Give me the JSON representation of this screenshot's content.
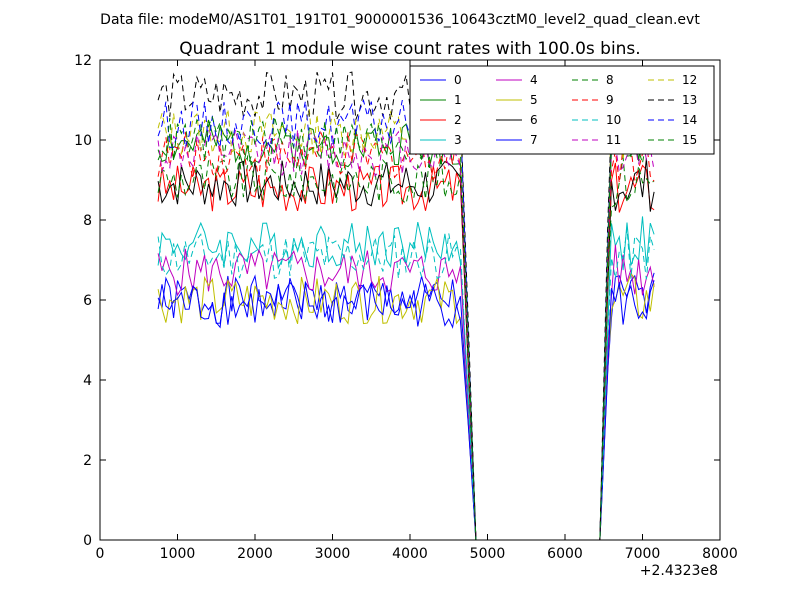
{
  "suptitle": "Data file: modeM0/AS1T01_191T01_9000001536_10643cztM0_level2_quad_clean.evt",
  "chart_data": {
    "type": "line",
    "title": "Quadrant 1 module wise count rates with 100.0s bins.",
    "xlabel": "",
    "ylabel": "",
    "x_offset_label": "+2.4323e8",
    "xlim": [
      0,
      8000
    ],
    "ylim": [
      0,
      12
    ],
    "xticks": [
      "0",
      "1000",
      "2000",
      "3000",
      "4000",
      "5000",
      "6000",
      "7000",
      "8000"
    ],
    "yticks": [
      "0",
      "2",
      "4",
      "6",
      "8",
      "10",
      "12"
    ],
    "grid": false,
    "legend_placement": "top-right",
    "legend_columns": 4,
    "segments": {
      "active1": [
        750,
        4650
      ],
      "drop": [
        4750,
        4850
      ],
      "gap": [
        4850,
        6450
      ],
      "active2": [
        6550,
        7150
      ]
    },
    "series": [
      {
        "name": "0",
        "color": "#0000ff",
        "dash": "solid",
        "base": 6.0,
        "seed": 1
      },
      {
        "name": "1",
        "color": "#008000",
        "dash": "solid",
        "base": 9.9,
        "seed": 2
      },
      {
        "name": "2",
        "color": "#ff0000",
        "dash": "solid",
        "base": 8.8,
        "seed": 3
      },
      {
        "name": "3",
        "color": "#00bfbf",
        "dash": "solid",
        "base": 7.4,
        "seed": 4
      },
      {
        "name": "4",
        "color": "#bf00bf",
        "dash": "solid",
        "base": 6.7,
        "seed": 5
      },
      {
        "name": "5",
        "color": "#bfbf00",
        "dash": "solid",
        "base": 6.0,
        "seed": 6
      },
      {
        "name": "6",
        "color": "#000000",
        "dash": "solid",
        "base": 8.9,
        "seed": 7
      },
      {
        "name": "7",
        "color": "#0000ff",
        "dash": "solid",
        "base": 5.9,
        "seed": 8
      },
      {
        "name": "8",
        "color": "#008000",
        "dash": "dashed",
        "base": 9.0,
        "seed": 9
      },
      {
        "name": "9",
        "color": "#ff0000",
        "dash": "dashed",
        "base": 9.6,
        "seed": 10
      },
      {
        "name": "10",
        "color": "#00bfbf",
        "dash": "dashed",
        "base": 7.1,
        "seed": 11
      },
      {
        "name": "11",
        "color": "#bf00bf",
        "dash": "dashed",
        "base": 9.7,
        "seed": 12
      },
      {
        "name": "12",
        "color": "#bfbf00",
        "dash": "dashed",
        "base": 10.2,
        "seed": 13
      },
      {
        "name": "13",
        "color": "#000000",
        "dash": "dashed",
        "base": 11.1,
        "seed": 14
      },
      {
        "name": "14",
        "color": "#0000ff",
        "dash": "dashed",
        "base": 10.4,
        "seed": 15
      },
      {
        "name": "15",
        "color": "#008000",
        "dash": "dashed",
        "base": 10.0,
        "seed": 16
      }
    ]
  }
}
